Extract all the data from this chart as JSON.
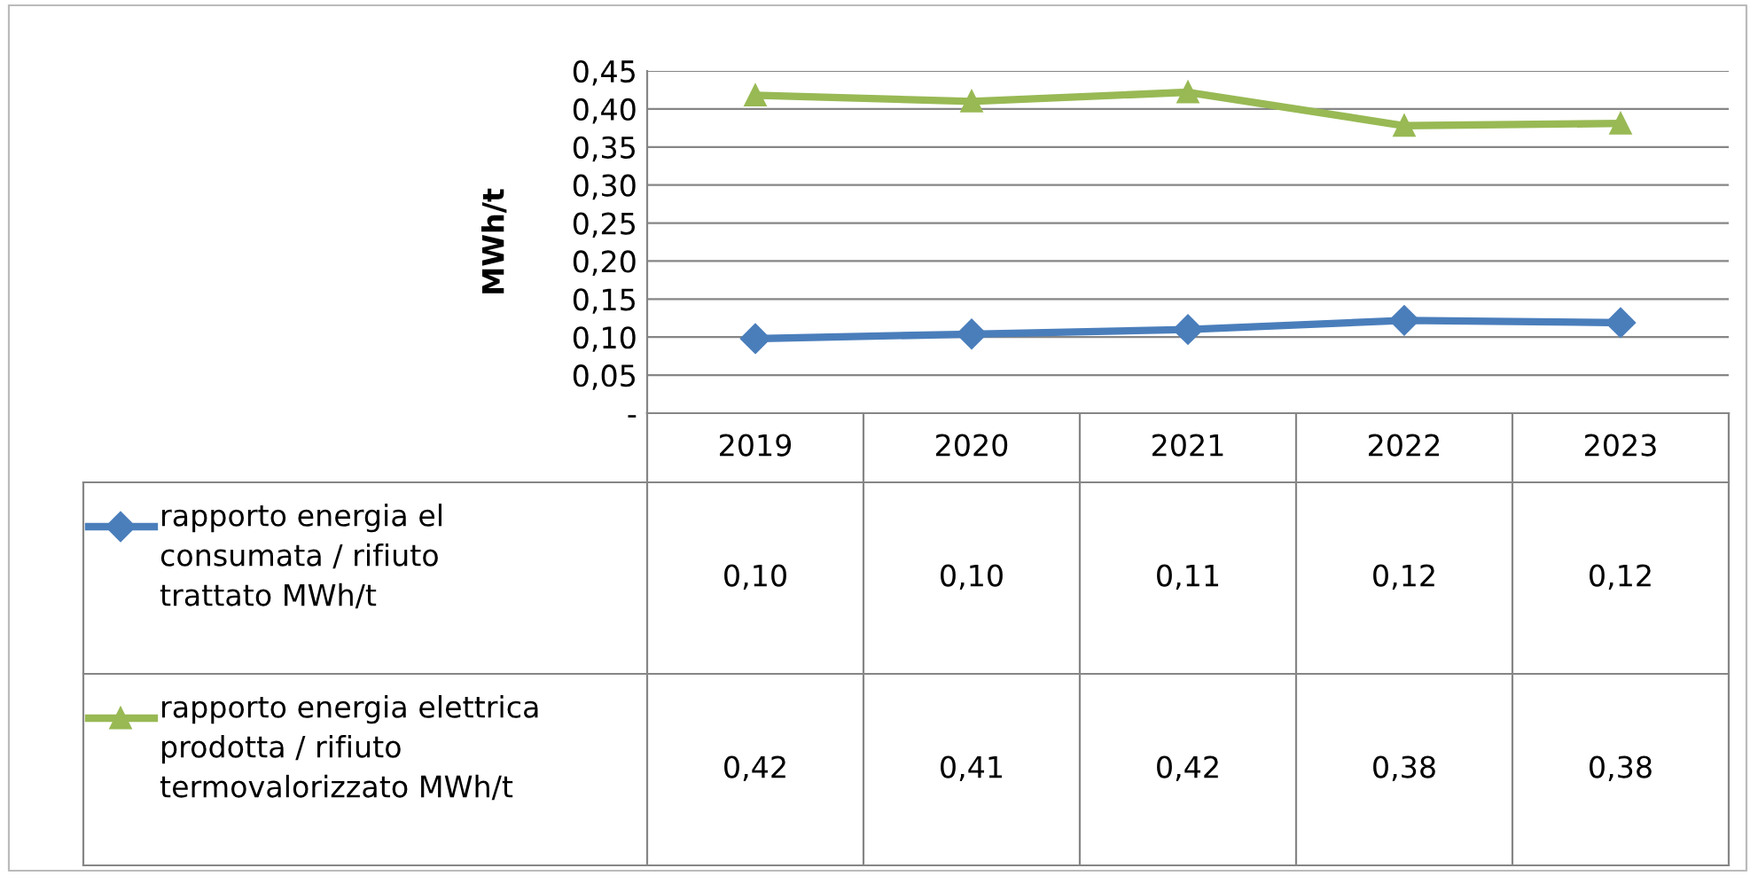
{
  "chart_data": {
    "type": "line",
    "ylabel": "MWh/t",
    "categories": [
      "2019",
      "2020",
      "2021",
      "2022",
      "2023"
    ],
    "series": [
      {
        "name": "rapporto energia el consumata / rifiuto trattato MWh/t",
        "color": "#4a7ebb",
        "marker": "diamond",
        "values": [
          0.098,
          0.104,
          0.11,
          0.122,
          0.119
        ],
        "value_labels": [
          "0,10",
          "0,10",
          "0,11",
          "0,12",
          "0,12"
        ]
      },
      {
        "name": "rapporto energia elettrica prodotta / rifiuto termovalorizzato MWh/t",
        "color": "#98b954",
        "marker": "triangle",
        "values": [
          0.418,
          0.41,
          0.422,
          0.378,
          0.381
        ],
        "value_labels": [
          "0,42",
          "0,41",
          "0,42",
          "0,38",
          "0,38"
        ]
      }
    ],
    "ylim": [
      0,
      0.45
    ],
    "yticks": [
      {
        "value": 0,
        "label": "-"
      },
      {
        "value": 0.05,
        "label": "0,05"
      },
      {
        "value": 0.1,
        "label": "0,10"
      },
      {
        "value": 0.15,
        "label": "0,15"
      },
      {
        "value": 0.2,
        "label": "0,20"
      },
      {
        "value": 0.25,
        "label": "0,25"
      },
      {
        "value": 0.3,
        "label": "0,30"
      },
      {
        "value": 0.35,
        "label": "0,35"
      },
      {
        "value": 0.4,
        "label": "0,40"
      },
      {
        "value": 0.45,
        "label": "0,45"
      }
    ],
    "grid": "y",
    "legend": "bottom",
    "line_style": "solid"
  }
}
